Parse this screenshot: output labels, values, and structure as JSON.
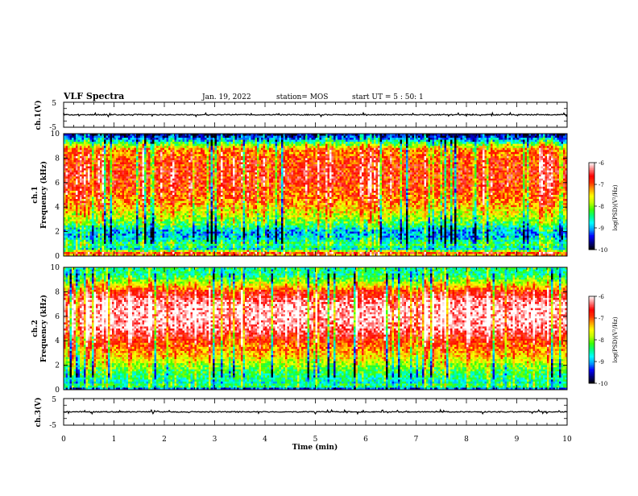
{
  "header": {
    "title": "VLF Spectra",
    "date": "Jan. 19, 2022",
    "station": "station= MOS",
    "start_ut": "start UT = 5 : 50: 1"
  },
  "colors": {
    "frame": "#000000",
    "background": "#ffffff",
    "colormap": [
      "#000000",
      "#000080",
      "#0000ff",
      "#00a0ff",
      "#00ffff",
      "#00ff80",
      "#40ff00",
      "#c0ff00",
      "#ffff00",
      "#ffa000",
      "#ff3000",
      "#ff0000",
      "#ff8080",
      "#ffffff"
    ]
  },
  "chart_data": [
    {
      "type": "line",
      "name": "ch1-waveform",
      "ylabel": "ch.1(V)",
      "ylim": [
        -5,
        5
      ],
      "yticks": [
        "5",
        "-5"
      ],
      "xlim": [
        0,
        10
      ],
      "grid": false
    },
    {
      "type": "heatmap",
      "name": "ch1-spectrogram",
      "ylabel_line1": "ch.1",
      "ylabel_line2": "Frequency (kHz)",
      "ylim": [
        0,
        10
      ],
      "yticks": [
        "0",
        "2",
        "4",
        "6",
        "8",
        "10"
      ],
      "xlim": [
        0,
        10
      ],
      "colorbar": {
        "label": "log(PSD)(V²/Hz)",
        "range": [
          -10,
          -6
        ],
        "ticks": [
          "-6",
          "-7",
          "-8",
          "-9",
          "-10"
        ]
      },
      "profile_freq_khz": [
        0,
        0.3,
        0.5,
        1,
        1.5,
        2,
        2.5,
        3,
        4,
        5,
        6,
        7,
        8,
        8.8,
        9.3,
        9.7,
        10
      ],
      "profile_log_psd": [
        -7.5,
        -6.6,
        -8.8,
        -8.3,
        -8.9,
        -9.0,
        -8.4,
        -8.0,
        -7.4,
        -7.0,
        -6.8,
        -6.8,
        -6.9,
        -7.3,
        -8.5,
        -9.4,
        -9.8
      ]
    },
    {
      "type": "heatmap",
      "name": "ch2-spectrogram",
      "ylabel_line1": "ch.2",
      "ylabel_line2": "Frequency (kHz)",
      "ylim": [
        0,
        10
      ],
      "yticks": [
        "0",
        "2",
        "4",
        "6",
        "8",
        "10"
      ],
      "xlim": [
        0,
        10
      ],
      "colorbar": {
        "label": "log(PSD)(V²/Hz)",
        "range": [
          -10,
          -6
        ],
        "ticks": [
          "-6",
          "-7",
          "-8",
          "-9",
          "-10"
        ]
      },
      "profile_freq_khz": [
        0,
        0.3,
        0.6,
        1,
        1.5,
        2,
        2.5,
        3,
        4,
        5,
        6,
        7,
        8,
        8.5,
        9,
        9.5,
        10
      ],
      "profile_log_psd": [
        -9.6,
        -8.2,
        -8.7,
        -8.5,
        -8.3,
        -8.0,
        -7.6,
        -7.3,
        -6.9,
        -6.3,
        -6.1,
        -6.2,
        -6.8,
        -7.5,
        -8.1,
        -8.6,
        -8.4
      ]
    },
    {
      "type": "line",
      "name": "ch3-waveform",
      "ylabel": "ch.3(V)",
      "ylim": [
        -5,
        5
      ],
      "yticks": [
        "5",
        "-5"
      ],
      "xlim": [
        0,
        10
      ],
      "xlabel": "Time (min)",
      "xticks": [
        "0",
        "1",
        "2",
        "3",
        "4",
        "5",
        "6",
        "7",
        "8",
        "9",
        "10"
      ],
      "grid": false
    }
  ]
}
